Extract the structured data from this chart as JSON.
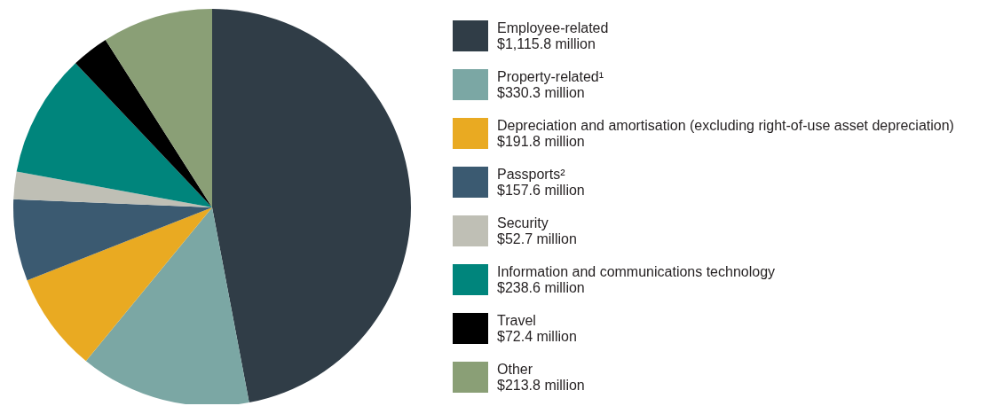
{
  "chart_data": {
    "type": "pie",
    "categories": [
      "Employee-related",
      "Property-related¹",
      "Depreciation and amortisation (excluding right-of-use asset depreciation)",
      "Passports²",
      "Security",
      "Information and communications technology",
      "Travel",
      "Other"
    ],
    "values": [
      1115.8,
      330.3,
      191.8,
      157.6,
      52.7,
      238.6,
      72.4,
      213.8
    ],
    "value_labels": [
      "$1,115.8 million",
      "$330.3 million",
      "$191.8 million",
      "$157.6 million",
      "$52.7 million",
      "$238.6 million",
      "$72.4 million",
      "$213.8 million"
    ],
    "colors": [
      "#303d47",
      "#7ba7a4",
      "#e9aa22",
      "#3b5a71",
      "#bfbfb5",
      "#00857c",
      "#000000",
      "#8a9f76"
    ],
    "legend": "right"
  }
}
